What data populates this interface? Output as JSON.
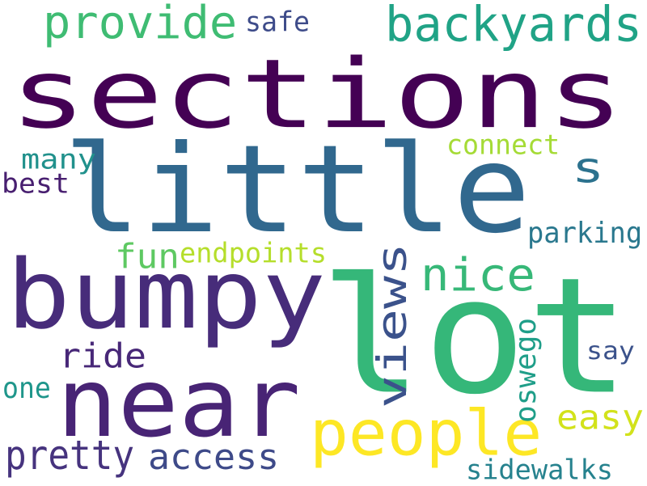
{
  "words": [
    {
      "text": "sections",
      "color": "#440154"
    },
    {
      "text": "little",
      "color": "#31688e"
    },
    {
      "text": "lot",
      "color": "#35b779"
    },
    {
      "text": "bumpy",
      "color": "#472c7a"
    },
    {
      "text": "near",
      "color": "#482475"
    },
    {
      "text": "people",
      "color": "#fde725"
    },
    {
      "text": "backyards",
      "color": "#20a386"
    },
    {
      "text": "provide",
      "color": "#3fbc73"
    },
    {
      "text": "views",
      "color": "#3b528b"
    },
    {
      "text": "nice",
      "color": "#37b878"
    },
    {
      "text": "s",
      "color": "#2c728e"
    },
    {
      "text": "fun",
      "color": "#5ec962"
    },
    {
      "text": "endpoints",
      "color": "#b5de2b"
    },
    {
      "text": "pretty",
      "color": "#46337e"
    },
    {
      "text": "access",
      "color": "#3e4a89"
    },
    {
      "text": "ride",
      "color": "#482878"
    },
    {
      "text": "easy",
      "color": "#d2e21b"
    },
    {
      "text": "parking",
      "color": "#2a788e"
    },
    {
      "text": "sidewalks",
      "color": "#26828e"
    },
    {
      "text": "oswego",
      "color": "#1f9e89"
    },
    {
      "text": "say",
      "color": "#3b528b"
    },
    {
      "text": "one",
      "color": "#1f968b"
    },
    {
      "text": "safe",
      "color": "#3e4c8a"
    },
    {
      "text": "connect",
      "color": "#a5db36"
    },
    {
      "text": "many",
      "color": "#21918c"
    },
    {
      "text": "best",
      "color": "#481f70"
    }
  ]
}
